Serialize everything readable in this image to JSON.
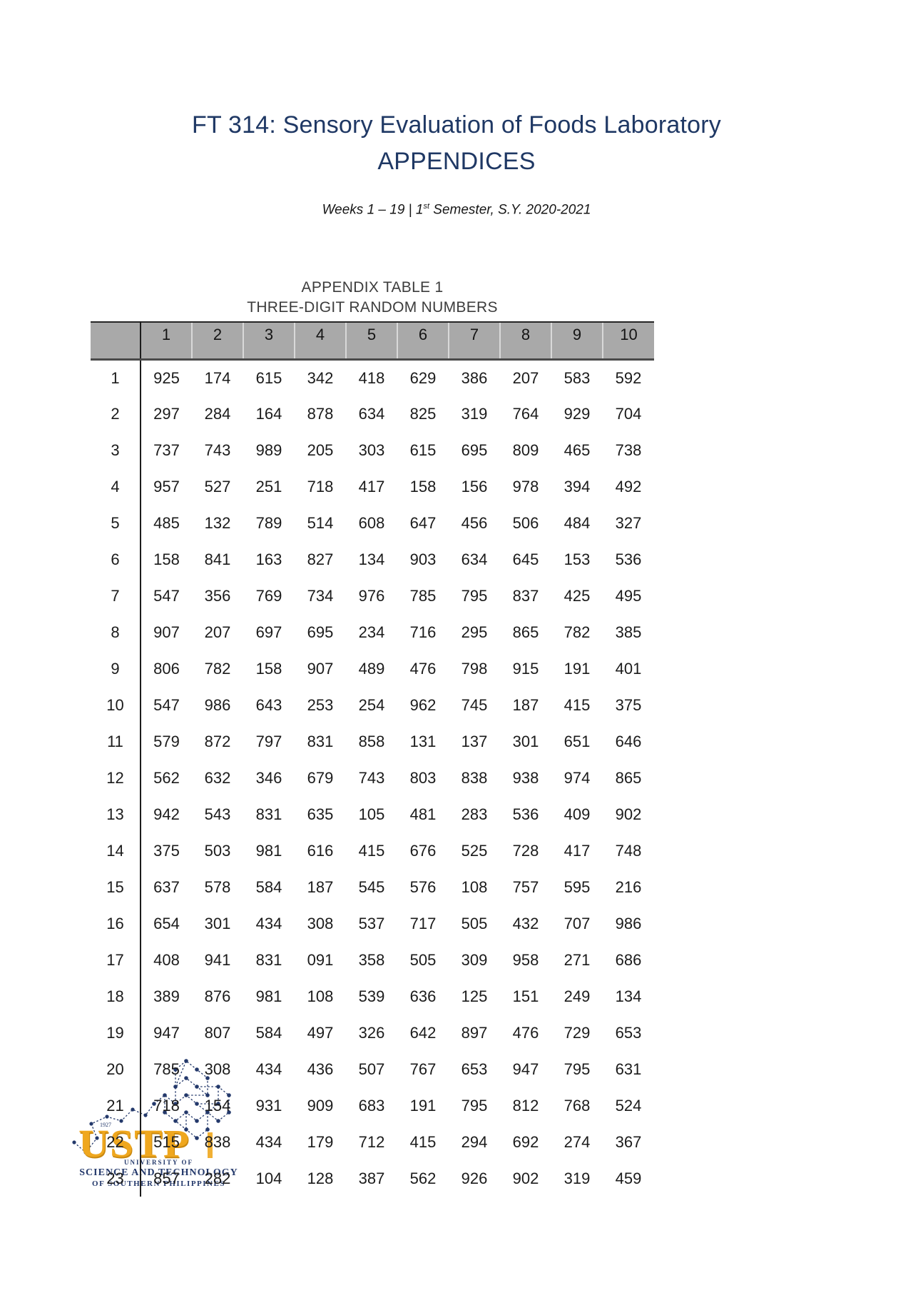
{
  "colors": {
    "title_navy": "#1F3864",
    "header_gray": "#A9A9A9",
    "logo_gold": "#EFA71E",
    "logo_navy": "#24396B"
  },
  "page": {
    "title_line1": "FT 314: Sensory Evaluation of Foods Laboratory",
    "title_line2": "APPENDICES",
    "subtitle_prefix": "Weeks 1 – 19 | 1",
    "subtitle_sup": "st",
    "subtitle_suffix": " Semester, S.Y. 2020-2021"
  },
  "appendix": {
    "caption_line1": "APPENDIX TABLE 1",
    "caption_line2": "THREE-DIGIT RANDOM NUMBERS"
  },
  "table": {
    "column_headers": [
      "1",
      "2",
      "3",
      "4",
      "5",
      "6",
      "7",
      "8",
      "9",
      "10"
    ],
    "rows": [
      {
        "label": "1",
        "values": [
          "925",
          "174",
          "615",
          "342",
          "418",
          "629",
          "386",
          "207",
          "583",
          "592"
        ]
      },
      {
        "label": "2",
        "values": [
          "297",
          "284",
          "164",
          "878",
          "634",
          "825",
          "319",
          "764",
          "929",
          "704"
        ]
      },
      {
        "label": "3",
        "values": [
          "737",
          "743",
          "989",
          "205",
          "303",
          "615",
          "695",
          "809",
          "465",
          "738"
        ]
      },
      {
        "label": "4",
        "values": [
          "957",
          "527",
          "251",
          "718",
          "417",
          "158",
          "156",
          "978",
          "394",
          "492"
        ]
      },
      {
        "label": "5",
        "values": [
          "485",
          "132",
          "789",
          "514",
          "608",
          "647",
          "456",
          "506",
          "484",
          "327"
        ]
      },
      {
        "label": "6",
        "values": [
          "158",
          "841",
          "163",
          "827",
          "134",
          "903",
          "634",
          "645",
          "153",
          "536"
        ]
      },
      {
        "label": "7",
        "values": [
          "547",
          "356",
          "769",
          "734",
          "976",
          "785",
          "795",
          "837",
          "425",
          "495"
        ]
      },
      {
        "label": "8",
        "values": [
          "907",
          "207",
          "697",
          "695",
          "234",
          "716",
          "295",
          "865",
          "782",
          "385"
        ]
      },
      {
        "label": "9",
        "values": [
          "806",
          "782",
          "158",
          "907",
          "489",
          "476",
          "798",
          "915",
          "191",
          "401"
        ]
      },
      {
        "label": "10",
        "values": [
          "547",
          "986",
          "643",
          "253",
          "254",
          "962",
          "745",
          "187",
          "415",
          "375"
        ]
      },
      {
        "label": "11",
        "values": [
          "579",
          "872",
          "797",
          "831",
          "858",
          "131",
          "137",
          "301",
          "651",
          "646"
        ]
      },
      {
        "label": "12",
        "values": [
          "562",
          "632",
          "346",
          "679",
          "743",
          "803",
          "838",
          "938",
          "974",
          "865"
        ]
      },
      {
        "label": "13",
        "values": [
          "942",
          "543",
          "831",
          "635",
          "105",
          "481",
          "283",
          "536",
          "409",
          "902"
        ]
      },
      {
        "label": "14",
        "values": [
          "375",
          "503",
          "981",
          "616",
          "415",
          "676",
          "525",
          "728",
          "417",
          "748"
        ]
      },
      {
        "label": "15",
        "values": [
          "637",
          "578",
          "584",
          "187",
          "545",
          "576",
          "108",
          "757",
          "595",
          "216"
        ]
      },
      {
        "label": "16",
        "values": [
          "654",
          "301",
          "434",
          "308",
          "537",
          "717",
          "505",
          "432",
          "707",
          "986"
        ]
      },
      {
        "label": "17",
        "values": [
          "408",
          "941",
          "831",
          "091",
          "358",
          "505",
          "309",
          "958",
          "271",
          "686"
        ]
      },
      {
        "label": "18",
        "values": [
          "389",
          "876",
          "981",
          "108",
          "539",
          "636",
          "125",
          "151",
          "249",
          "134"
        ]
      },
      {
        "label": "19",
        "values": [
          "947",
          "807",
          "584",
          "497",
          "326",
          "642",
          "897",
          "476",
          "729",
          "653"
        ]
      },
      {
        "label": "20",
        "values": [
          "785",
          "308",
          "434",
          "436",
          "507",
          "767",
          "653",
          "947",
          "795",
          "631"
        ]
      },
      {
        "label": "21",
        "values": [
          "718",
          "154",
          "931",
          "909",
          "683",
          "191",
          "795",
          "812",
          "768",
          "524"
        ]
      },
      {
        "label": "22",
        "values": [
          "515",
          "838",
          "434",
          "179",
          "712",
          "415",
          "294",
          "692",
          "274",
          "367"
        ]
      },
      {
        "label": "23",
        "values": [
          "857",
          "282",
          "104",
          "128",
          "387",
          "562",
          "926",
          "902",
          "319",
          "459"
        ]
      }
    ]
  },
  "logo": {
    "acronym": "USTP",
    "year": "1927",
    "line1": "UNIVERSITY OF",
    "line2": "SCIENCE AND TECHNOLOGY",
    "line3": "OF SOUTHERN PHILIPPINES"
  }
}
